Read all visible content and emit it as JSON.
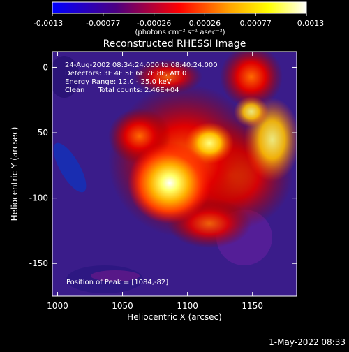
{
  "chart_data": {
    "type": "heatmap",
    "title": "Reconstructed RHESSI Image",
    "xlabel": "Heliocentric X (arcsec)",
    "ylabel": "Heliocentric Y (arcsec)",
    "xlim": [
      996,
      1184
    ],
    "ylim": [
      -175,
      12
    ],
    "x_ticks": [
      1000,
      1050,
      1100,
      1150
    ],
    "y_ticks": [
      0,
      -50,
      -100,
      -150
    ],
    "colorbar": {
      "range": [
        -0.0013,
        0.0013
      ],
      "tick_labels": [
        "-0.0013",
        "-0.00077",
        "-0.00026",
        "0.00026",
        "0.00077",
        "0.0013"
      ],
      "unit_label": "(photons cm⁻² s⁻¹ asec⁻²)",
      "colormap": [
        "#0000ff",
        "#4b0082",
        "#ff0000",
        "#ffa500",
        "#ffff00",
        "#ffffff"
      ]
    },
    "annotations": [
      "24-Aug-2002 08:34:24.000 to 08:40:24.000",
      "Detectors: 3F 4F 5F 6F 7F 8F, Att 0",
      "Energy Range: 12.0 - 25.0 keV",
      "Clean      Total counts: 2.46E+04",
      "Position of Peak = [1084,-82]"
    ],
    "peak": {
      "x": 1084,
      "y": -82
    },
    "grid": false,
    "legend": "none"
  },
  "footer": {
    "timestamp": "1-May-2022 08:33"
  }
}
